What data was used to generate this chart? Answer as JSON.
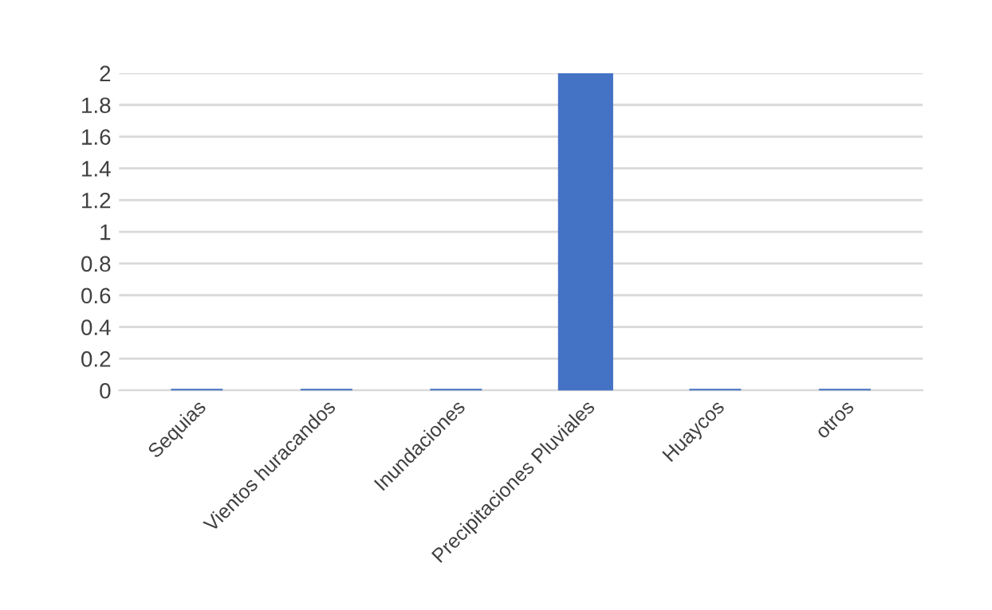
{
  "chart_data": {
    "type": "bar",
    "categories": [
      "Sequias",
      "Vientos huracandos",
      "Inundaciones",
      "Precipitaciones Pluviales",
      "Huaycos",
      "otros"
    ],
    "values": [
      0,
      0,
      0,
      2,
      0,
      0
    ],
    "color": "#4472c4",
    "ylim": [
      0,
      2
    ],
    "yticks": [
      0,
      0.2,
      0.4,
      0.6,
      0.8,
      1,
      1.2,
      1.4,
      1.6,
      1.8,
      2
    ],
    "grid": "y"
  }
}
